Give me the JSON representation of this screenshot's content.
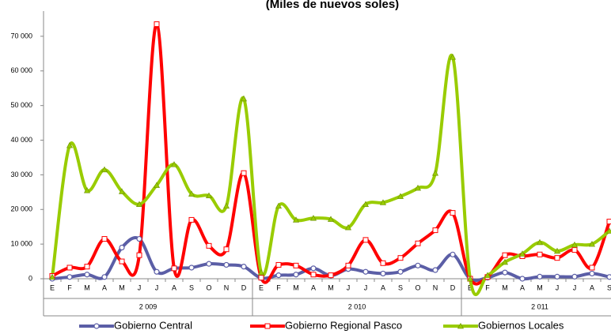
{
  "chart_data": {
    "type": "line",
    "title": "(Miles de nuevos soles)",
    "categories": [
      "E",
      "F",
      "M",
      "A",
      "M",
      "J",
      "J",
      "A",
      "S",
      "O",
      "N",
      "D",
      "E",
      "F",
      "M",
      "A",
      "M",
      "J",
      "J",
      "A",
      "S",
      "O",
      "N",
      "D",
      "E",
      "F",
      "M",
      "A",
      "M",
      "J",
      "J",
      "A",
      "S"
    ],
    "years": [
      "2 009",
      "2 010",
      "2 011"
    ],
    "series": [
      {
        "name": "Gobierno Central",
        "color": "#5b5ea6",
        "marker": "circle",
        "values": [
          0,
          500,
          1200,
          500,
          9000,
          11500,
          2000,
          3000,
          3200,
          4300,
          4000,
          3500,
          200,
          1000,
          1200,
          3000,
          900,
          2800,
          2000,
          1500,
          2000,
          3800,
          2500,
          7000,
          0,
          300,
          1800,
          0,
          600,
          600,
          600,
          1500,
          500
        ]
      },
      {
        "name": "Gobierno Regional Pasco",
        "color": "#ff0000",
        "marker": "square",
        "values": [
          800,
          3200,
          3500,
          11500,
          5000,
          6800,
          73500,
          3000,
          17000,
          9500,
          8500,
          30500,
          300,
          4000,
          3800,
          1200,
          1000,
          3800,
          11200,
          4500,
          6000,
          10200,
          14000,
          19000,
          0,
          500,
          6800,
          6500,
          7000,
          6000,
          8300,
          3200,
          16500
        ]
      },
      {
        "name": "Gobiernos Locales",
        "color": "#99cc00",
        "marker": "triangle",
        "values": [
          500,
          38500,
          25500,
          31500,
          25200,
          21500,
          27000,
          33000,
          24500,
          24000,
          21000,
          52000,
          1800,
          21000,
          17000,
          17500,
          17200,
          14800,
          21500,
          22000,
          23800,
          26200,
          30500,
          64000,
          0,
          1000,
          4800,
          7200,
          10500,
          8000,
          9800,
          10000,
          13800
        ]
      }
    ],
    "ylim": [
      0,
      75000
    ],
    "yticks": [
      0,
      {
        "value": 10000,
        "label": "10 000"
      },
      {
        "value": 20000,
        "label": "20 000"
      },
      {
        "value": 30000,
        "label": "30 000"
      },
      {
        "value": 40000,
        "label": "40 000"
      },
      {
        "value": 50000,
        "label": "50 000"
      },
      {
        "value": 60000,
        "label": "60 000"
      },
      {
        "value": 70000,
        "label": "70 000"
      }
    ]
  }
}
